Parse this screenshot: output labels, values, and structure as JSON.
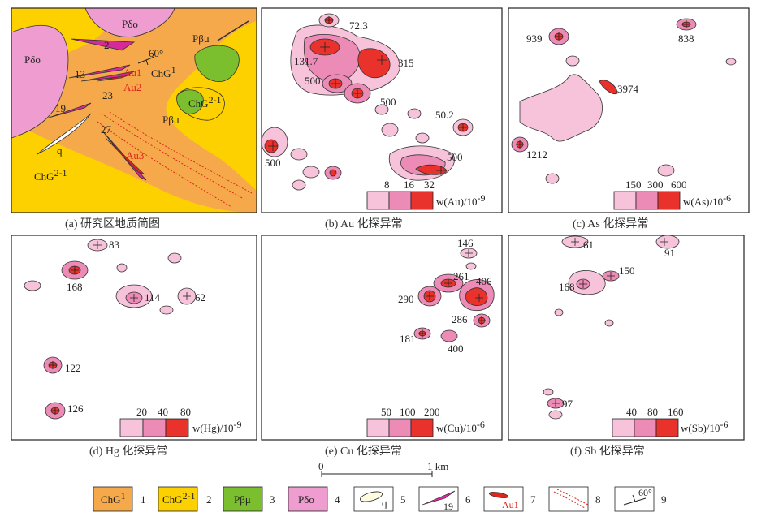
{
  "panels": {
    "a": {
      "caption": "(a) 研究区地质简图",
      "labels": {
        "pdo1": "Pδo",
        "pdo2": "Pδo",
        "pbm1": "Pβμ",
        "pbm2": "Pβμ",
        "chg1": "ChG",
        "chg1_sup": "1",
        "chg21a": "ChG",
        "chg21a_sup": "2-1",
        "chg21b": "ChG",
        "chg21b_sup": "2-1",
        "q": "q",
        "dip": "60°",
        "dike2": "2",
        "dike13": "13",
        "dike19": "19",
        "dike23": "23",
        "dike27": "27",
        "au1": "Au1",
        "au2": "Au2",
        "au3": "Au3"
      }
    },
    "b": {
      "caption": "(b) Au 化探异常",
      "values": [
        "72.3",
        "131.7",
        "315",
        "500",
        "500",
        "50.2",
        "500",
        "500"
      ],
      "legend_ticks": [
        "8",
        "16",
        "32"
      ],
      "legend_unit": "w(Au)/10",
      "legend_exp": "-9"
    },
    "c": {
      "caption": "(c) As 化探异常",
      "values": [
        "939",
        "838",
        "3974",
        "1212"
      ],
      "legend_ticks": [
        "150",
        "300",
        "600"
      ],
      "legend_unit": "w(As)/10",
      "legend_exp": "-6"
    },
    "d": {
      "caption": "(d) Hg 化探异常",
      "values": [
        "83",
        "168",
        "114",
        "62",
        "122",
        "126"
      ],
      "legend_ticks": [
        "20",
        "40",
        "80"
      ],
      "legend_unit": "w(Hg)/10",
      "legend_exp": "-9"
    },
    "e": {
      "caption": "(e) Cu 化探异常",
      "values": [
        "146",
        "261",
        "406",
        "290",
        "286",
        "181",
        "400"
      ],
      "legend_ticks": [
        "50",
        "100",
        "200"
      ],
      "legend_unit": "w(Cu)/10",
      "legend_exp": "-6"
    },
    "f": {
      "caption": "(f) Sb 化探异常",
      "values": [
        "61",
        "91",
        "150",
        "168",
        "97"
      ],
      "legend_ticks": [
        "40",
        "80",
        "160"
      ],
      "legend_unit": "w(Sb)/10",
      "legend_exp": "-6"
    }
  },
  "scale": {
    "start": "0",
    "end": "1 km"
  },
  "legend": {
    "items": [
      {
        "label": "ChG",
        "sup": "1",
        "num": "1"
      },
      {
        "label": "ChG",
        "sup": "2-1",
        "num": "2"
      },
      {
        "label": "Pβμ",
        "sup": "",
        "num": "3"
      },
      {
        "label": "Pδo",
        "sup": "",
        "num": "4"
      },
      {
        "label": "q",
        "sup": "",
        "num": "5"
      },
      {
        "label": "19",
        "sup": "",
        "num": "6"
      },
      {
        "label": "Au1",
        "sup": "",
        "num": "7"
      },
      {
        "label": "",
        "sup": "",
        "num": "8"
      },
      {
        "label": "60°",
        "sup": "",
        "num": "9"
      }
    ]
  },
  "colors": {
    "chg1": "#f5a94a",
    "chg21": "#fdd000",
    "pbm": "#7bbf2f",
    "pdo": "#ef9cd0",
    "anom_low": "#f7c3da",
    "anom_mid": "#ec8bb5",
    "anom_high": "#e8322b"
  }
}
